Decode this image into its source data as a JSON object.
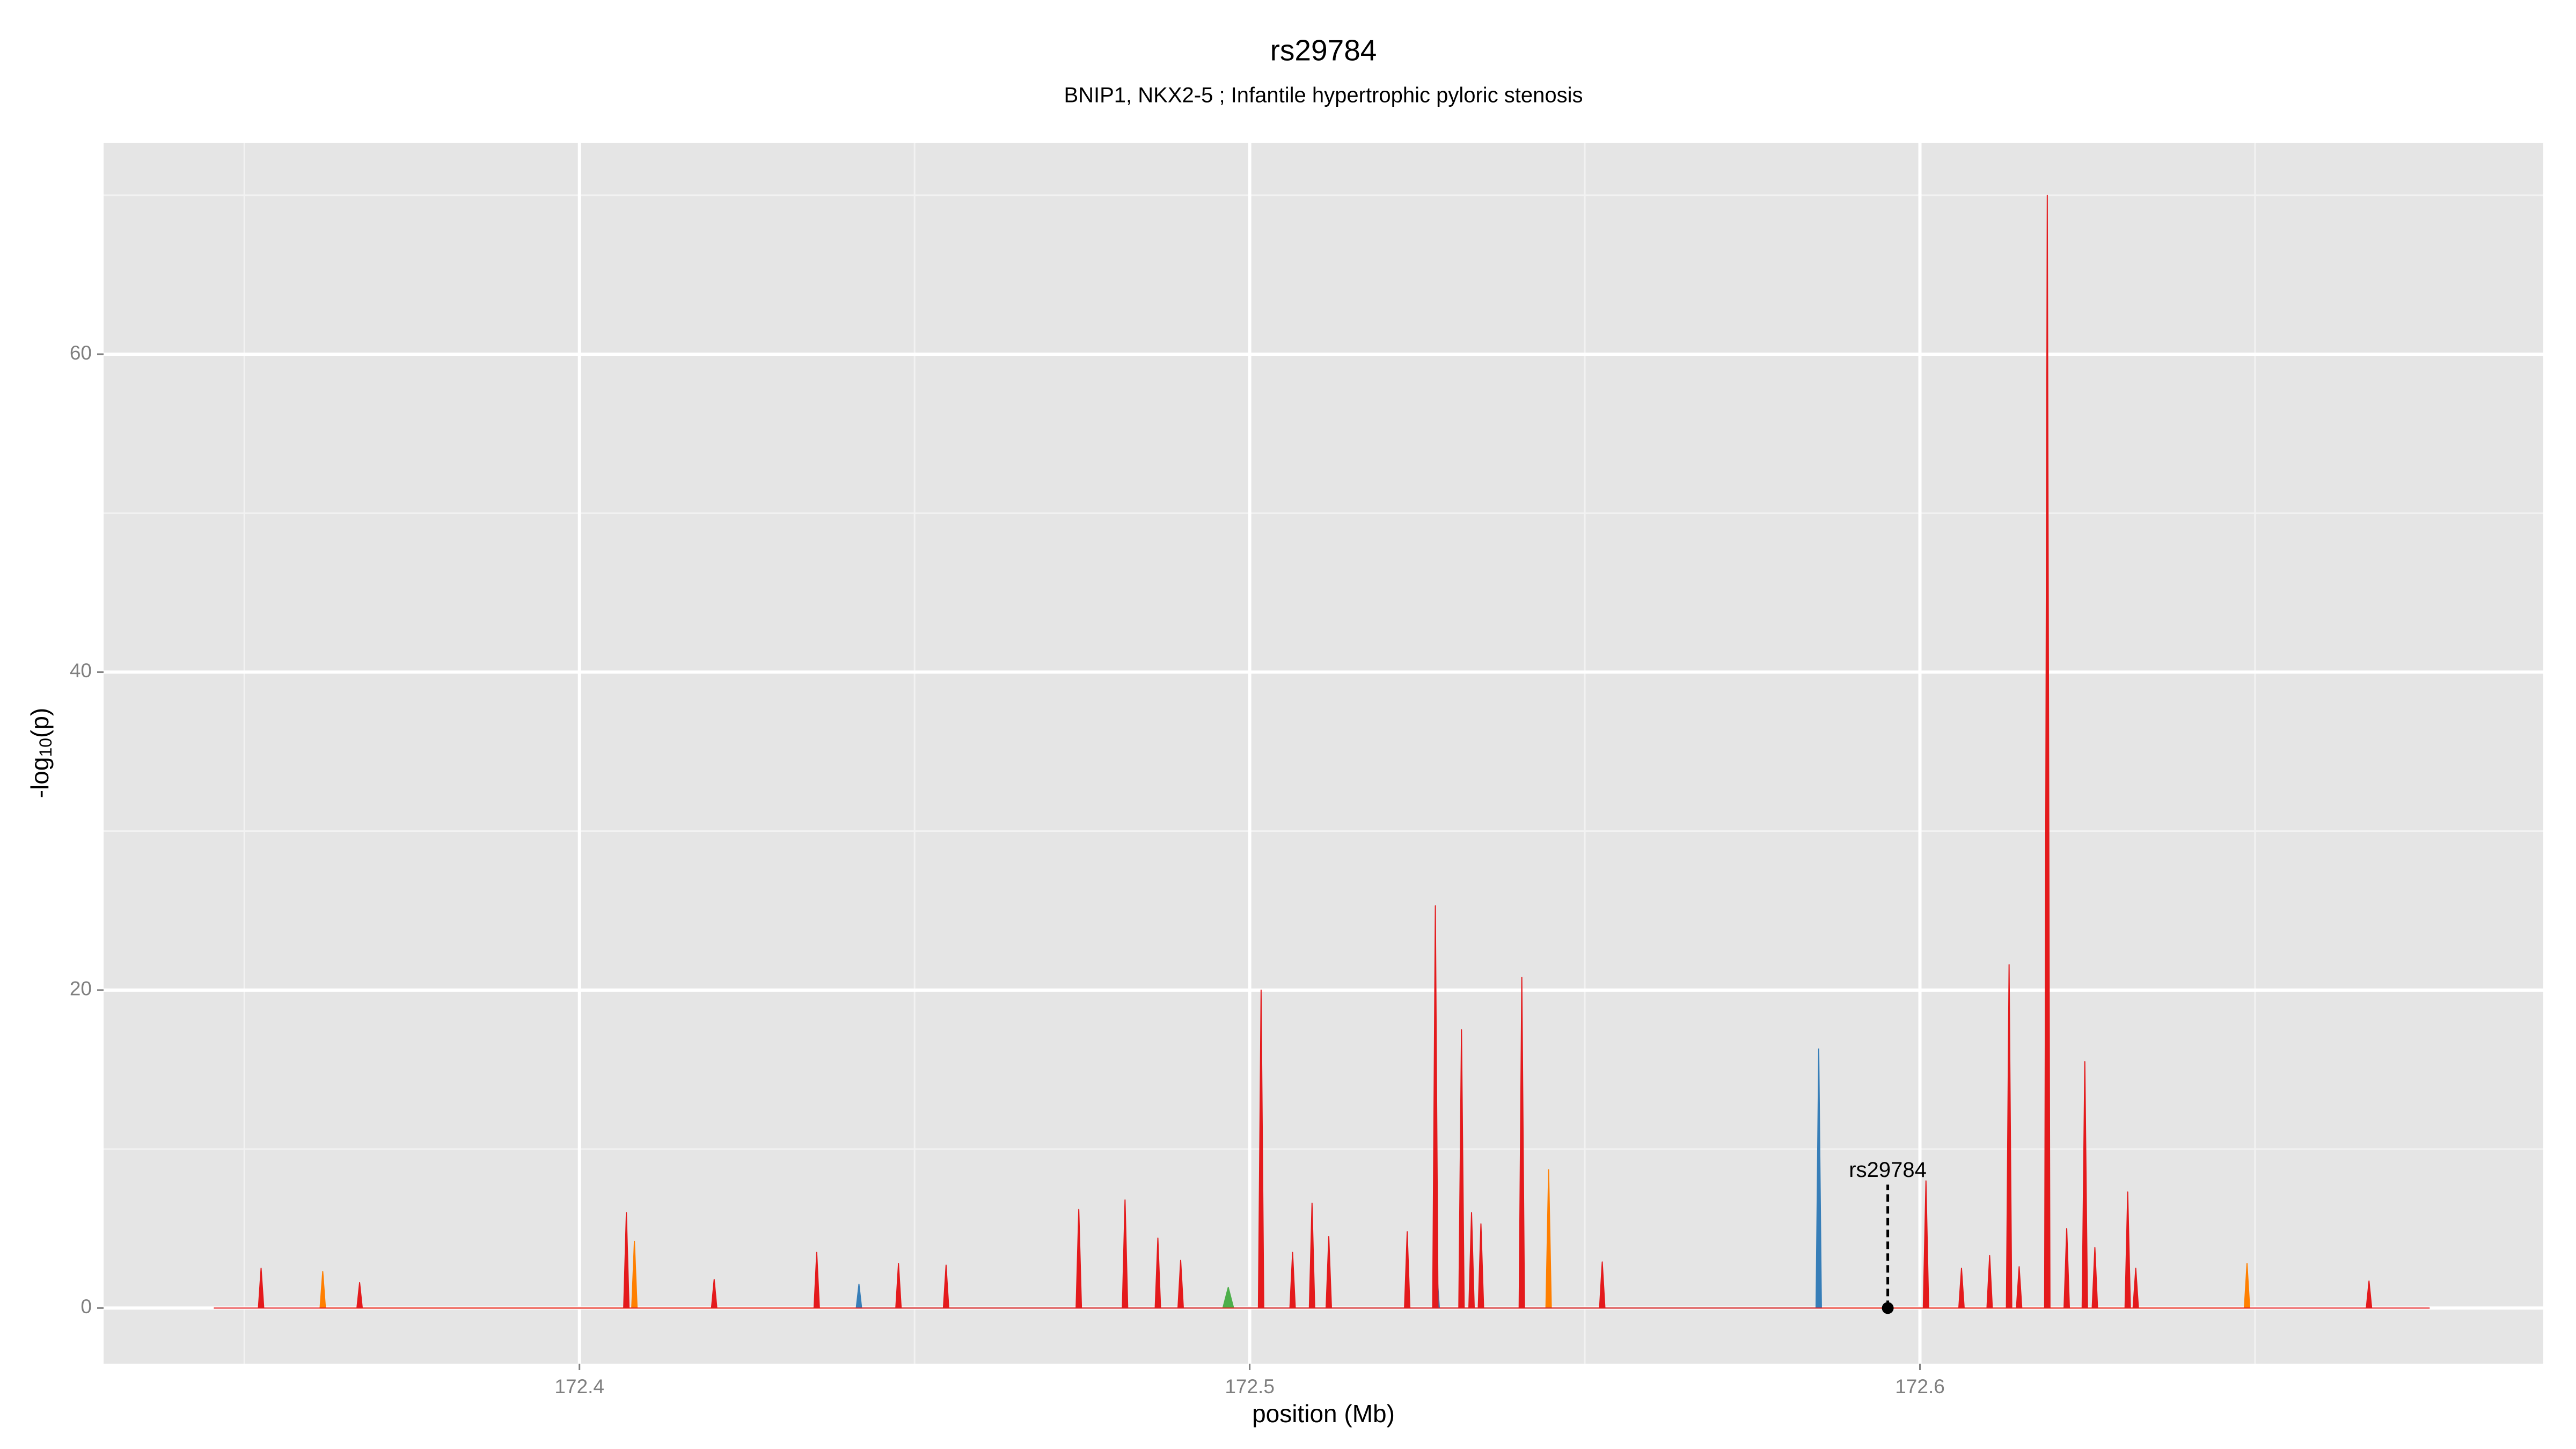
{
  "chart_data": {
    "type": "area",
    "title": "rs29784",
    "subtitle": "BNIP1, NKX2-5 ; Infantile hypertrophic pyloric stenosis",
    "xlabel": "position (Mb)",
    "ylabel": {
      "prefix": "-log",
      "sub": "10",
      "suffix": "(p)"
    },
    "xlim": [
      172.329,
      172.693
    ],
    "ylim": [
      -3.5,
      73.3
    ],
    "xticks": [
      172.4,
      172.5,
      172.6
    ],
    "yticks": [
      0,
      20,
      40,
      60
    ],
    "xminor": [
      172.35,
      172.45,
      172.55,
      172.65
    ],
    "yminor": [
      10,
      30,
      50,
      70
    ],
    "grid": true,
    "series": [
      {
        "name": "orange",
        "color": "#ff7f00",
        "x": [
          172.3613,
          172.3617,
          172.3621,
          172.4078,
          172.4082,
          172.4086,
          172.5442,
          172.5446,
          172.545,
          172.6484,
          172.6488,
          172.6492
        ],
        "values": [
          0,
          2.3,
          0,
          0,
          4.2,
          0,
          0,
          8.7,
          0,
          0,
          2.8,
          0
        ]
      },
      {
        "name": "blue",
        "color": "#377eb8",
        "x": [
          172.4413,
          172.4417,
          172.4421,
          172.5275,
          172.5279,
          172.5283,
          172.5845,
          172.5849,
          172.5853
        ],
        "values": [
          0,
          1.5,
          0,
          0,
          2.5,
          0,
          0,
          16.3,
          0
        ]
      },
      {
        "name": "green",
        "color": "#4daf4a",
        "x": [
          172.496,
          172.4968,
          172.4976
        ],
        "values": [
          0,
          1.3,
          0
        ]
      },
      {
        "name": "red",
        "color": "#e41a1c",
        "x": [
          172.3455,
          172.3521,
          172.3525,
          172.3529,
          172.3668,
          172.3672,
          172.3676,
          172.4066,
          172.407,
          172.4074,
          172.4197,
          172.4201,
          172.4205,
          172.435,
          172.4354,
          172.4358,
          172.4472,
          172.4476,
          172.448,
          172.4543,
          172.4547,
          172.4551,
          172.4741,
          172.4745,
          172.4749,
          172.481,
          172.4814,
          172.4818,
          172.4859,
          172.4863,
          172.4867,
          172.4893,
          172.4897,
          172.4901,
          172.5013,
          172.5017,
          172.5021,
          172.506,
          172.5064,
          172.5068,
          172.5089,
          172.5093,
          172.5097,
          172.5114,
          172.5118,
          172.5122,
          172.5231,
          172.5235,
          172.5239,
          172.5273,
          172.5277,
          172.5281,
          172.5312,
          172.5316,
          172.532,
          172.5327,
          172.5331,
          172.5335,
          172.5341,
          172.5345,
          172.5349,
          172.5402,
          172.5406,
          172.541,
          172.5522,
          172.5526,
          172.553,
          172.6005,
          172.6009,
          172.6013,
          172.6058,
          172.6062,
          172.6066,
          172.61,
          172.6104,
          172.6108,
          172.6129,
          172.6133,
          172.6137,
          172.6144,
          172.6148,
          172.6152,
          172.6186,
          172.619,
          172.6194,
          172.6215,
          172.6219,
          172.6223,
          172.6242,
          172.6246,
          172.625,
          172.6257,
          172.6261,
          172.6265,
          172.6306,
          172.631,
          172.6314,
          172.6318,
          172.6322,
          172.6326,
          172.6666,
          172.667,
          172.6674,
          172.676
        ],
        "values": [
          0,
          0,
          2.5,
          0,
          0,
          1.6,
          0,
          0,
          6,
          0,
          0,
          1.8,
          0,
          0,
          3.5,
          0,
          0,
          2.8,
          0,
          0,
          2.7,
          0,
          0,
          6.2,
          0,
          0,
          6.8,
          0,
          0,
          4.4,
          0,
          0,
          3,
          0,
          0,
          20,
          0,
          0,
          3.5,
          0,
          0,
          6.6,
          0,
          0,
          4.5,
          0,
          0,
          4.8,
          0,
          0,
          25.3,
          0,
          0,
          17.5,
          0,
          0,
          6,
          0,
          0,
          5.3,
          0,
          0,
          20.8,
          0,
          0,
          2.9,
          0,
          0,
          8,
          0,
          0,
          2.5,
          0,
          0,
          3.3,
          0,
          0,
          21.6,
          0,
          0,
          2.6,
          0,
          0,
          70,
          0,
          0,
          5,
          0,
          0,
          15.5,
          0,
          0,
          3.8,
          0,
          0,
          7.3,
          0,
          0,
          2.5,
          0,
          0,
          1.7,
          0,
          0
        ]
      }
    ],
    "annotation": {
      "label": "rs29784",
      "x": 172.5952,
      "y": 0
    }
  }
}
